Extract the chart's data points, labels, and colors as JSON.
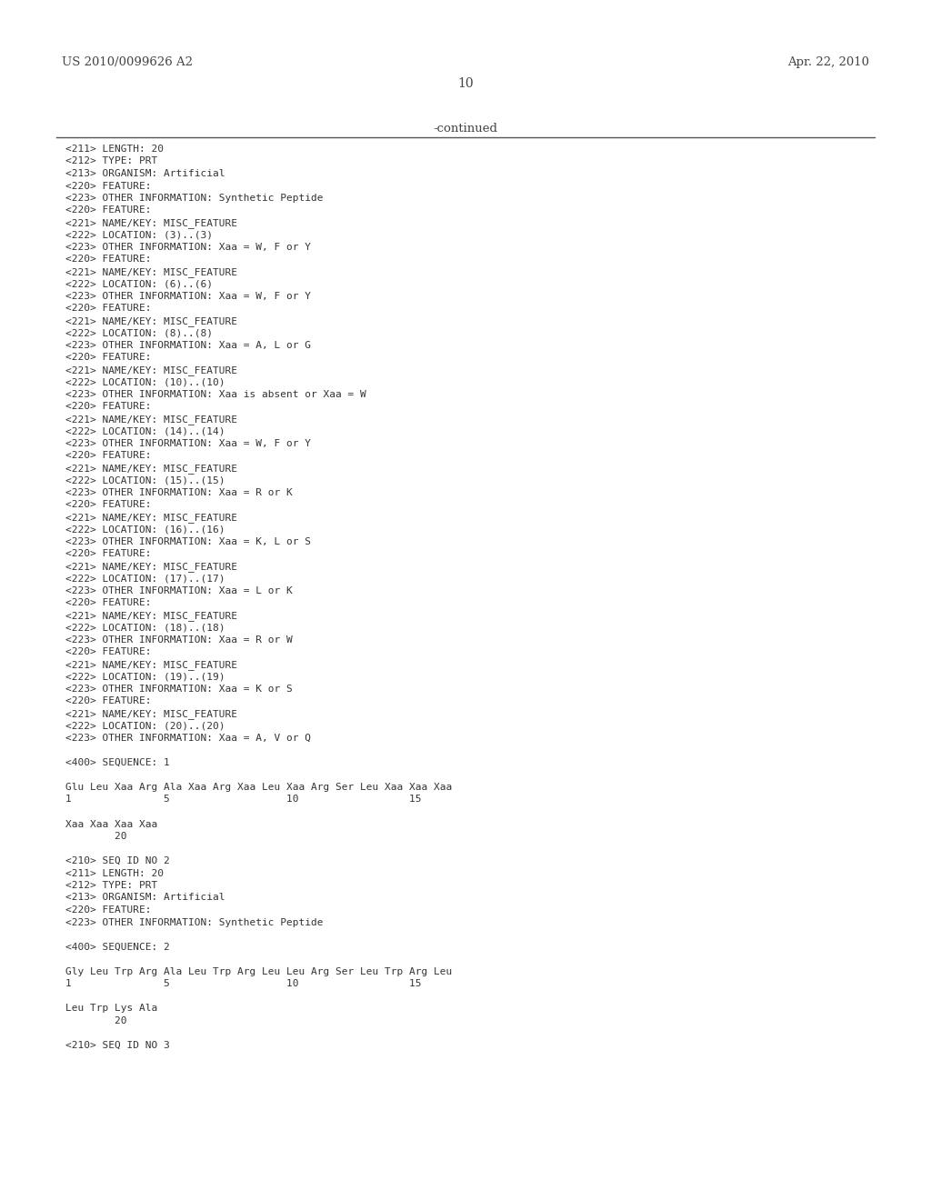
{
  "header_left": "US 2010/0099626 A2",
  "header_right": "Apr. 22, 2010",
  "page_number": "10",
  "continued_text": "-continued",
  "background_color": "#ffffff",
  "text_color": "#444444",
  "lines": [
    "<211> LENGTH: 20",
    "<212> TYPE: PRT",
    "<213> ORGANISM: Artificial",
    "<220> FEATURE:",
    "<223> OTHER INFORMATION: Synthetic Peptide",
    "<220> FEATURE:",
    "<221> NAME/KEY: MISC_FEATURE",
    "<222> LOCATION: (3)..(3)",
    "<223> OTHER INFORMATION: Xaa = W, F or Y",
    "<220> FEATURE:",
    "<221> NAME/KEY: MISC_FEATURE",
    "<222> LOCATION: (6)..(6)",
    "<223> OTHER INFORMATION: Xaa = W, F or Y",
    "<220> FEATURE:",
    "<221> NAME/KEY: MISC_FEATURE",
    "<222> LOCATION: (8)..(8)",
    "<223> OTHER INFORMATION: Xaa = A, L or G",
    "<220> FEATURE:",
    "<221> NAME/KEY: MISC_FEATURE",
    "<222> LOCATION: (10)..(10)",
    "<223> OTHER INFORMATION: Xaa is absent or Xaa = W",
    "<220> FEATURE:",
    "<221> NAME/KEY: MISC_FEATURE",
    "<222> LOCATION: (14)..(14)",
    "<223> OTHER INFORMATION: Xaa = W, F or Y",
    "<220> FEATURE:",
    "<221> NAME/KEY: MISC_FEATURE",
    "<222> LOCATION: (15)..(15)",
    "<223> OTHER INFORMATION: Xaa = R or K",
    "<220> FEATURE:",
    "<221> NAME/KEY: MISC_FEATURE",
    "<222> LOCATION: (16)..(16)",
    "<223> OTHER INFORMATION: Xaa = K, L or S",
    "<220> FEATURE:",
    "<221> NAME/KEY: MISC_FEATURE",
    "<222> LOCATION: (17)..(17)",
    "<223> OTHER INFORMATION: Xaa = L or K",
    "<220> FEATURE:",
    "<221> NAME/KEY: MISC_FEATURE",
    "<222> LOCATION: (18)..(18)",
    "<223> OTHER INFORMATION: Xaa = R or W",
    "<220> FEATURE:",
    "<221> NAME/KEY: MISC_FEATURE",
    "<222> LOCATION: (19)..(19)",
    "<223> OTHER INFORMATION: Xaa = K or S",
    "<220> FEATURE:",
    "<221> NAME/KEY: MISC_FEATURE",
    "<222> LOCATION: (20)..(20)",
    "<223> OTHER INFORMATION: Xaa = A, V or Q"
  ],
  "sequence_block_1": [
    "",
    "<400> SEQUENCE: 1",
    "",
    "Glu Leu Xaa Arg Ala Xaa Arg Xaa Leu Xaa Arg Ser Leu Xaa Xaa Xaa",
    "1               5                   10                  15",
    "",
    "Xaa Xaa Xaa Xaa",
    "        20"
  ],
  "sequence_block_2": [
    "",
    "<210> SEQ ID NO 2",
    "<211> LENGTH: 20",
    "<212> TYPE: PRT",
    "<213> ORGANISM: Artificial",
    "<220> FEATURE:",
    "<223> OTHER INFORMATION: Synthetic Peptide",
    "",
    "<400> SEQUENCE: 2",
    "",
    "Gly Leu Trp Arg Ala Leu Trp Arg Leu Leu Arg Ser Leu Trp Arg Leu",
    "1               5                   10                  15",
    "",
    "Leu Trp Lys Ala",
    "        20"
  ],
  "sequence_block_3": [
    "",
    "<210> SEQ ID NO 3"
  ]
}
